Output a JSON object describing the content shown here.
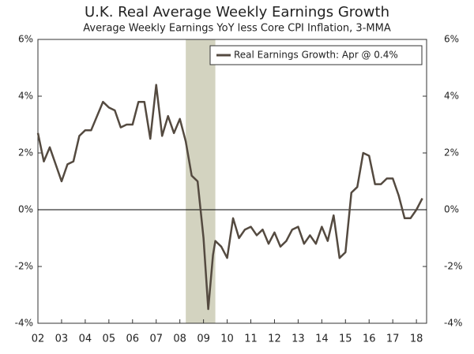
{
  "chart_data": {
    "type": "line",
    "title": "U.K. Real Average Weekly Earnings Growth",
    "subtitle": "Average Weekly Earnings YoY less Core CPI Inflation, 3-MMA",
    "x": [
      2002.0,
      2002.25,
      2002.5,
      2002.75,
      2003.0,
      2003.25,
      2003.5,
      2003.75,
      2004.0,
      2004.25,
      2004.5,
      2004.75,
      2005.0,
      2005.25,
      2005.5,
      2005.75,
      2006.0,
      2006.25,
      2006.5,
      2006.75,
      2007.0,
      2007.25,
      2007.5,
      2007.75,
      2008.0,
      2008.25,
      2008.5,
      2008.75,
      2009.0,
      2009.2,
      2009.4,
      2009.5,
      2009.75,
      2010.0,
      2010.25,
      2010.5,
      2010.75,
      2011.0,
      2011.25,
      2011.5,
      2011.75,
      2012.0,
      2012.25,
      2012.5,
      2012.75,
      2013.0,
      2013.25,
      2013.5,
      2013.75,
      2014.0,
      2014.25,
      2014.5,
      2014.75,
      2015.0,
      2015.25,
      2015.5,
      2015.75,
      2016.0,
      2016.25,
      2016.5,
      2016.75,
      2017.0,
      2017.25,
      2017.5,
      2017.75,
      2018.0,
      2018.25
    ],
    "series": [
      {
        "name": "Real Earnings Growth: Apr @ 0.4%",
        "color": "#544a40",
        "values": [
          2.7,
          1.7,
          2.2,
          1.6,
          1.0,
          1.6,
          1.7,
          2.6,
          2.8,
          2.8,
          3.3,
          3.8,
          3.6,
          3.5,
          2.9,
          3.0,
          3.0,
          3.8,
          3.8,
          2.5,
          4.4,
          2.6,
          3.3,
          2.7,
          3.2,
          2.4,
          1.2,
          1.0,
          -1.0,
          -3.5,
          -1.6,
          -1.1,
          -1.3,
          -1.7,
          -0.3,
          -1.0,
          -0.7,
          -0.6,
          -0.9,
          -0.7,
          -1.2,
          -0.8,
          -1.3,
          -1.1,
          -0.7,
          -0.6,
          -1.2,
          -0.9,
          -1.2,
          -0.6,
          -1.1,
          -0.2,
          -1.7,
          -1.5,
          0.6,
          0.8,
          2.0,
          1.9,
          0.9,
          0.9,
          1.1,
          1.1,
          0.5,
          -0.3,
          -0.3,
          0.0,
          0.4
        ]
      }
    ],
    "shaded_region": [
      2008.25,
      2009.5
    ],
    "xlim": [
      2002,
      2018.43
    ],
    "xticks": [
      {
        "value": 2002,
        "label": "02"
      },
      {
        "value": 2003,
        "label": "03"
      },
      {
        "value": 2004,
        "label": "04"
      },
      {
        "value": 2005,
        "label": "05"
      },
      {
        "value": 2006,
        "label": "06"
      },
      {
        "value": 2007,
        "label": "07"
      },
      {
        "value": 2008,
        "label": "08"
      },
      {
        "value": 2009,
        "label": "09"
      },
      {
        "value": 2010,
        "label": "10"
      },
      {
        "value": 2011,
        "label": "11"
      },
      {
        "value": 2012,
        "label": "12"
      },
      {
        "value": 2013,
        "label": "13"
      },
      {
        "value": 2014,
        "label": "14"
      },
      {
        "value": 2015,
        "label": "15"
      },
      {
        "value": 2016,
        "label": "16"
      },
      {
        "value": 2017,
        "label": "17"
      },
      {
        "value": 2018,
        "label": "18"
      }
    ],
    "ylim": [
      -4,
      6
    ],
    "yticks": [
      {
        "value": -4,
        "label": "-4%"
      },
      {
        "value": -2,
        "label": "-2%"
      },
      {
        "value": 0,
        "label": "0%"
      },
      {
        "value": 2,
        "label": "2%"
      },
      {
        "value": 4,
        "label": "4%"
      },
      {
        "value": 6,
        "label": "6%"
      }
    ],
    "legend": "top-right"
  }
}
